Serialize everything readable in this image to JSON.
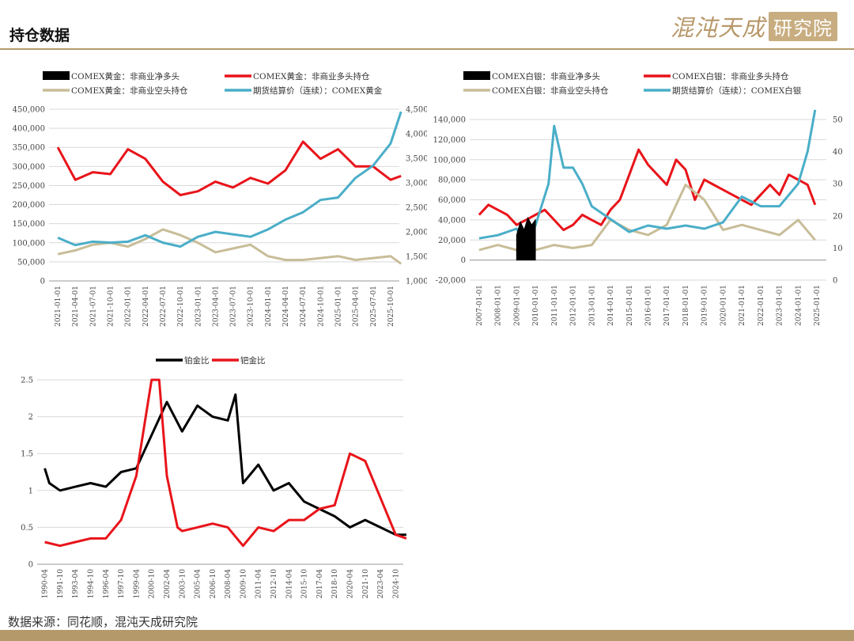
{
  "header": {
    "title": "持仓数据"
  },
  "logo": {
    "script_text": "混沌天成",
    "box_text": "研究院"
  },
  "source": {
    "text": "数据来源：同花顺，混沌天成研究院"
  },
  "colors": {
    "black": "#000000",
    "red": "#e8141a",
    "tan": "#c8bd98",
    "teal": "#4aaec8",
    "grid": "#d9d9d9",
    "gold": "#b49a6a"
  },
  "chart_data": [
    {
      "id": "gold",
      "type": "line",
      "legend": [
        "COMEX黄金：非商业净多头",
        "COMEX黄金：非商业多头持仓",
        "COMEX黄金：非商业空头持仓",
        "期货结算价（连续）：COMEX黄金"
      ],
      "x_ticks": [
        "2021-01-01",
        "2021-04-01",
        "2021-07-01",
        "2021-10-01",
        "2022-01-01",
        "2022-04-01",
        "2022-07-01",
        "2022-10-01",
        "2023-01-01",
        "2023-04-01",
        "2023-07-01",
        "2023-10-01",
        "2024-01-01",
        "2024-04-01",
        "2024-07-01",
        "2024-10-01",
        "2025-01-01",
        "2025-04-01",
        "2025-07-01",
        "2025-10-01"
      ],
      "y_left": {
        "min": 0,
        "max": 450000,
        "ticks": [
          "0",
          "50,000",
          "100,000",
          "150,000",
          "200,000",
          "250,000",
          "300,000",
          "350,000",
          "400,000",
          "450,000"
        ]
      },
      "y_right": {
        "min": 1000,
        "max": 4500,
        "ticks": [
          "1,000",
          "1,500",
          "2,000",
          "2,500",
          "3,000",
          "3,500",
          "4,000",
          "4,500"
        ]
      },
      "series": [
        {
          "name": "COMEX黄金：非商业多头持仓",
          "color": "red",
          "axis": "left",
          "x": [
            0,
            1,
            2,
            3,
            4,
            5,
            6,
            7,
            8,
            9,
            10,
            11,
            12,
            13,
            14,
            15,
            16,
            17,
            18,
            19,
            19.6
          ],
          "values": [
            350000,
            265000,
            285000,
            280000,
            345000,
            320000,
            260000,
            225000,
            235000,
            260000,
            245000,
            270000,
            255000,
            290000,
            365000,
            320000,
            345000,
            300000,
            300000,
            265000,
            275000
          ]
        },
        {
          "name": "COMEX黄金：非商业空头持仓",
          "color": "tan",
          "axis": "left",
          "x": [
            0,
            1,
            2,
            3,
            4,
            5,
            6,
            7,
            8,
            9,
            10,
            11,
            12,
            13,
            14,
            15,
            16,
            17,
            18,
            19,
            19.6
          ],
          "values": [
            70000,
            80000,
            95000,
            100000,
            90000,
            110000,
            135000,
            120000,
            100000,
            75000,
            85000,
            95000,
            65000,
            55000,
            55000,
            60000,
            65000,
            55000,
            60000,
            65000,
            45000
          ]
        },
        {
          "name": "期货结算价（连续）：COMEX黄金",
          "color": "teal",
          "axis": "right",
          "x": [
            0,
            1,
            2,
            3,
            4,
            5,
            6,
            7,
            8,
            9,
            10,
            11,
            12,
            13,
            14,
            15,
            16,
            17,
            18,
            19,
            19.6
          ],
          "values": [
            1880,
            1730,
            1800,
            1780,
            1800,
            1930,
            1780,
            1700,
            1900,
            2000,
            1950,
            1900,
            2050,
            2250,
            2400,
            2650,
            2700,
            3100,
            3350,
            3800,
            4450
          ]
        }
      ]
    },
    {
      "id": "silver",
      "type": "line",
      "legend": [
        "COMEX白银：非商业净多头",
        "COMEX白银：非商业多头持仓",
        "COMEX白银：非商业空头持仓",
        "期货结算价（连续）：COMEX白银"
      ],
      "x_ticks": [
        "2007-01-01",
        "2008-01-01",
        "2009-01-01",
        "2010-01-01",
        "2011-01-01",
        "2012-01-01",
        "2013-01-01",
        "2014-01-01",
        "2015-01-01",
        "2016-01-01",
        "2017-01-01",
        "2018-01-01",
        "2019-01-01",
        "2020-01-01",
        "2021-01-01",
        "2022-01-01",
        "2023-01-01",
        "2024-01-01",
        "2025-01-01"
      ],
      "y_left": {
        "min": -20000,
        "max": 140000,
        "ticks": [
          "-20,000",
          "0",
          "20,000",
          "40,000",
          "60,000",
          "80,000",
          "100,000",
          "120,000",
          "140,000"
        ]
      },
      "y_right": {
        "min": 0,
        "max": 50,
        "ticks": [
          "0",
          "10",
          "20",
          "30",
          "40",
          "50"
        ]
      },
      "series": [
        {
          "name": "COMEX白银：非商业多头持仓",
          "color": "red",
          "axis": "left",
          "x": [
            0,
            0.5,
            1,
            1.5,
            2,
            2.5,
            3,
            3.5,
            4,
            4.5,
            5,
            5.5,
            6,
            6.5,
            7,
            7.5,
            8,
            8.5,
            9,
            9.5,
            10,
            10.5,
            11,
            11.5,
            12,
            12.5,
            13,
            13.5,
            14,
            14.5,
            15,
            15.5,
            16,
            16.5,
            17,
            17.5,
            17.9
          ],
          "values": [
            45000,
            55000,
            50000,
            45000,
            35000,
            40000,
            45000,
            50000,
            40000,
            30000,
            35000,
            45000,
            40000,
            35000,
            50000,
            60000,
            85000,
            110000,
            95000,
            85000,
            75000,
            100000,
            90000,
            60000,
            80000,
            75000,
            70000,
            65000,
            60000,
            55000,
            65000,
            75000,
            65000,
            85000,
            80000,
            75000,
            55000
          ]
        },
        {
          "name": "COMEX白银：非商业空头持仓",
          "color": "tan",
          "axis": "left",
          "x": [
            0,
            1,
            2,
            3,
            4,
            5,
            6,
            7,
            8,
            9,
            10,
            11,
            12,
            13,
            14,
            15,
            16,
            17,
            17.9
          ],
          "values": [
            10000,
            15000,
            10000,
            10000,
            15000,
            12000,
            15000,
            40000,
            30000,
            25000,
            35000,
            75000,
            60000,
            30000,
            35000,
            30000,
            25000,
            40000,
            20000
          ]
        },
        {
          "name": "期货结算价（连续）：COMEX白银",
          "color": "teal",
          "axis": "right",
          "x": [
            0,
            1,
            2,
            2.5,
            3,
            3.7,
            4,
            4.5,
            5,
            5.5,
            6,
            7,
            8,
            9,
            10,
            11,
            12,
            13,
            14,
            15,
            16,
            17,
            17.5,
            17.9
          ],
          "values": [
            13,
            14,
            16,
            11,
            17,
            30,
            48,
            35,
            35,
            30,
            23,
            19,
            15,
            17,
            16,
            17,
            16,
            18,
            26,
            23,
            23,
            30,
            40,
            53
          ]
        },
        {
          "name": "COMEX白银：非商业净多头",
          "color": "black",
          "axis": "left",
          "x": [
            2.0,
            2.2,
            2.4,
            2.6,
            2.8,
            3.0
          ],
          "values": [
            25000,
            38000,
            30000,
            42000,
            35000,
            40000
          ]
        }
      ]
    },
    {
      "id": "ratio",
      "type": "line",
      "legend": [
        "铂金比",
        "钯金比"
      ],
      "x_ticks": [
        "1990-04",
        "1991-10",
        "1993-04",
        "1994-10",
        "1996-04",
        "1997-10",
        "1999-04",
        "2000-10",
        "2002-04",
        "2003-10",
        "2005-04",
        "2006-10",
        "2008-04",
        "2009-10",
        "2011-04",
        "2012-10",
        "2014-04",
        "2015-10",
        "2017-04",
        "2018-10",
        "2020-04",
        "2021-10",
        "2023-04",
        "2024-10"
      ],
      "y": {
        "min": 0,
        "max": 2.5,
        "ticks": [
          "0",
          "0.5",
          "1",
          "1.5",
          "2",
          "2.5"
        ]
      },
      "series": [
        {
          "name": "铂金比",
          "color": "black",
          "x": [
            0,
            0.3,
            1,
            2,
            3,
            4,
            5,
            6,
            7,
            8,
            9,
            10,
            11,
            12,
            12.5,
            13,
            14,
            15,
            16,
            17,
            18,
            19,
            20,
            21,
            22,
            23,
            23.7
          ],
          "values": [
            1.3,
            1.1,
            1.0,
            1.05,
            1.1,
            1.05,
            1.25,
            1.3,
            1.75,
            2.2,
            1.8,
            2.15,
            2.0,
            1.95,
            2.3,
            1.1,
            1.35,
            1.0,
            1.1,
            0.85,
            0.75,
            0.65,
            0.5,
            0.6,
            0.5,
            0.4,
            0.4
          ]
        },
        {
          "name": "钯金比",
          "color": "red",
          "x": [
            0,
            1,
            2,
            3,
            4,
            5,
            6,
            7,
            7.5,
            8,
            8.7,
            9,
            10,
            11,
            12,
            13,
            14,
            15,
            16,
            17,
            18,
            19,
            20,
            21,
            22,
            23,
            23.7
          ],
          "values": [
            0.3,
            0.25,
            0.3,
            0.35,
            0.35,
            0.6,
            1.2,
            2.5,
            2.5,
            1.2,
            0.5,
            0.45,
            0.5,
            0.55,
            0.5,
            0.25,
            0.5,
            0.45,
            0.6,
            0.6,
            0.75,
            0.8,
            1.5,
            1.4,
            0.9,
            0.4,
            0.35
          ]
        }
      ]
    }
  ]
}
